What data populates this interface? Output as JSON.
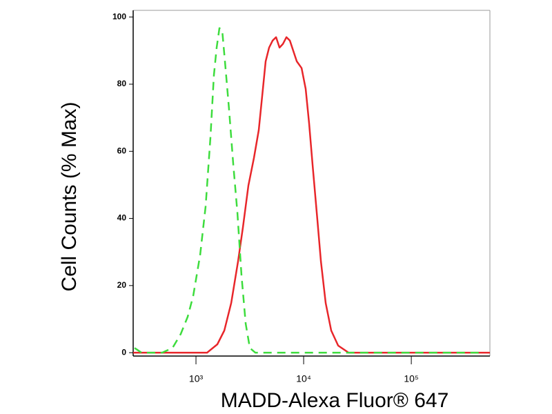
{
  "chart_data": {
    "type": "line",
    "xlabel": "MADD-Alexa Fluor® 647",
    "ylabel": "Cell Counts (% Max)",
    "xscale": "log",
    "xlim": [
      261,
      537000
    ],
    "ylim": [
      -1,
      102
    ],
    "xticks": [
      {
        "value": 1000,
        "label": "10³"
      },
      {
        "value": 10000,
        "label": "10⁴"
      },
      {
        "value": 100000,
        "label": "10⁵"
      }
    ],
    "yticks": [
      0,
      20,
      40,
      60,
      80,
      100
    ],
    "series": [
      {
        "color": "#e8262a",
        "dash": false,
        "x": [
          261,
          942,
          1267,
          1580,
          1833,
          2124,
          2460,
          2729,
          3070,
          3454,
          3829,
          4121,
          4436,
          4776,
          5148,
          5544,
          5970,
          6428,
          6918,
          7447,
          8017,
          8630,
          9572,
          10450,
          11250,
          12110,
          13430,
          14460,
          16030,
          18030,
          20930,
          26130,
          37760,
          106200,
          537000
        ],
        "values": [
          0,
          0,
          0,
          2.5,
          6.6,
          14.8,
          27.2,
          37.4,
          49.8,
          58,
          66.3,
          76.5,
          86.8,
          90.9,
          93,
          94,
          90.9,
          92,
          94,
          93,
          89.9,
          86.8,
          84.8,
          78.6,
          68.3,
          56,
          39.5,
          27.2,
          14.8,
          6.6,
          2.1,
          0,
          0,
          0,
          0
        ]
      },
      {
        "color": "#3ddc3d",
        "dash": true,
        "x": [
          269,
          312,
          485,
          605,
          723,
          838,
          942,
          1093,
          1229,
          1363,
          1468,
          1557,
          1651,
          1752,
          1859,
          2031,
          2220,
          2426,
          2649,
          2896,
          3163,
          3556,
          4121,
          464000
        ],
        "values": [
          1.4,
          0,
          0,
          1.4,
          5.6,
          10.7,
          16.9,
          29.2,
          43.6,
          64.2,
          82.7,
          90.9,
          96.7,
          96.1,
          86.8,
          72.4,
          56,
          41.6,
          23,
          8.6,
          1.4,
          0,
          0,
          0
        ]
      }
    ]
  }
}
